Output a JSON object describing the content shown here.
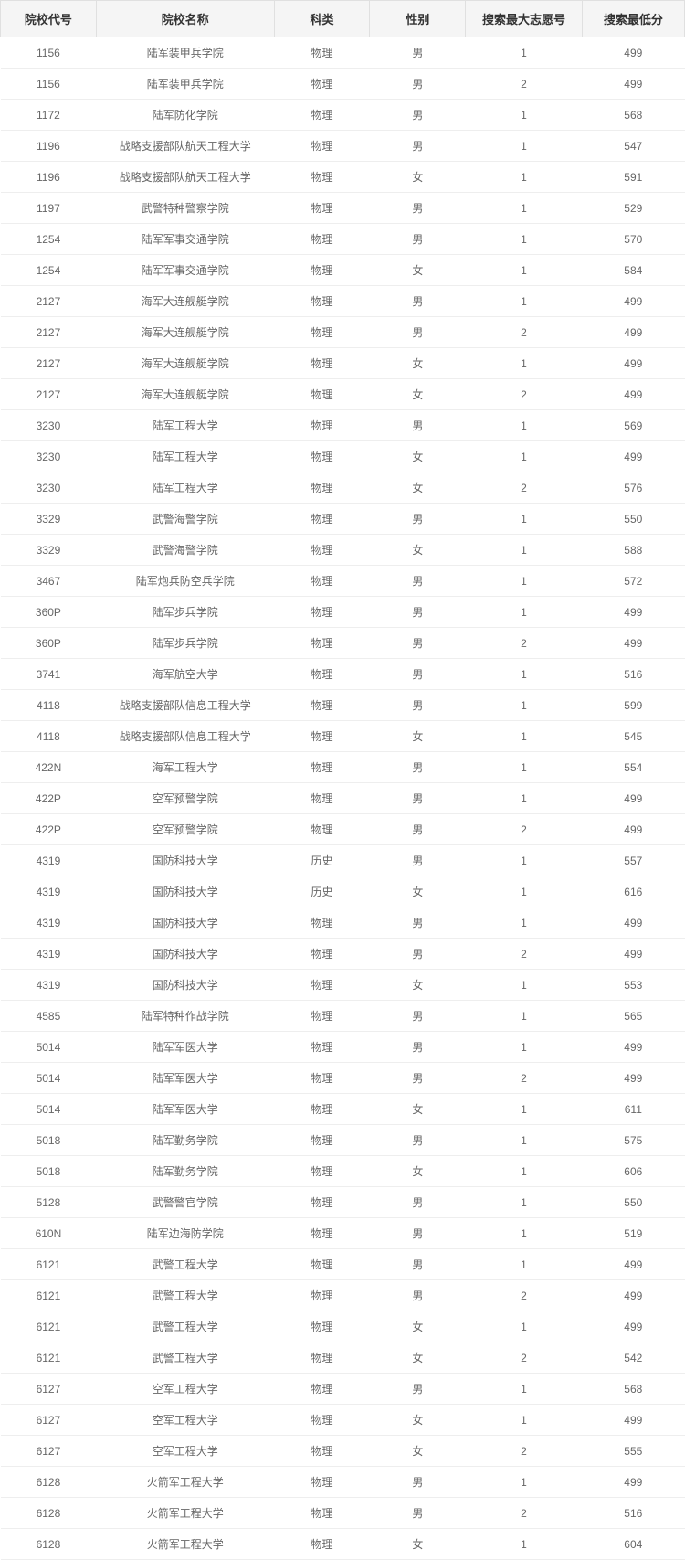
{
  "table": {
    "columns": [
      "院校代号",
      "院校名称",
      "科类",
      "性别",
      "搜索最大志愿号",
      "搜索最低分"
    ],
    "column_classes": [
      "col-code",
      "col-name",
      "col-subject",
      "col-gender",
      "col-volunteer",
      "col-score"
    ],
    "styling": {
      "header_bg": "#f5f5f5",
      "header_color": "#333333",
      "header_fontsize": 13,
      "header_fontweight": 700,
      "cell_color": "#666666",
      "cell_fontsize": 12,
      "border_color": "#e0e0e0",
      "row_border_color": "#eeeeee",
      "background_color": "#ffffff"
    },
    "rows": [
      [
        "1156",
        "陆军装甲兵学院",
        "物理",
        "男",
        "1",
        "499"
      ],
      [
        "1156",
        "陆军装甲兵学院",
        "物理",
        "男",
        "2",
        "499"
      ],
      [
        "1172",
        "陆军防化学院",
        "物理",
        "男",
        "1",
        "568"
      ],
      [
        "1196",
        "战略支援部队航天工程大学",
        "物理",
        "男",
        "1",
        "547"
      ],
      [
        "1196",
        "战略支援部队航天工程大学",
        "物理",
        "女",
        "1",
        "591"
      ],
      [
        "1197",
        "武警特种警察学院",
        "物理",
        "男",
        "1",
        "529"
      ],
      [
        "1254",
        "陆军军事交通学院",
        "物理",
        "男",
        "1",
        "570"
      ],
      [
        "1254",
        "陆军军事交通学院",
        "物理",
        "女",
        "1",
        "584"
      ],
      [
        "2127",
        "海军大连舰艇学院",
        "物理",
        "男",
        "1",
        "499"
      ],
      [
        "2127",
        "海军大连舰艇学院",
        "物理",
        "男",
        "2",
        "499"
      ],
      [
        "2127",
        "海军大连舰艇学院",
        "物理",
        "女",
        "1",
        "499"
      ],
      [
        "2127",
        "海军大连舰艇学院",
        "物理",
        "女",
        "2",
        "499"
      ],
      [
        "3230",
        "陆军工程大学",
        "物理",
        "男",
        "1",
        "569"
      ],
      [
        "3230",
        "陆军工程大学",
        "物理",
        "女",
        "1",
        "499"
      ],
      [
        "3230",
        "陆军工程大学",
        "物理",
        "女",
        "2",
        "576"
      ],
      [
        "3329",
        "武警海警学院",
        "物理",
        "男",
        "1",
        "550"
      ],
      [
        "3329",
        "武警海警学院",
        "物理",
        "女",
        "1",
        "588"
      ],
      [
        "3467",
        "陆军炮兵防空兵学院",
        "物理",
        "男",
        "1",
        "572"
      ],
      [
        "360P",
        "陆军步兵学院",
        "物理",
        "男",
        "1",
        "499"
      ],
      [
        "360P",
        "陆军步兵学院",
        "物理",
        "男",
        "2",
        "499"
      ],
      [
        "3741",
        "海军航空大学",
        "物理",
        "男",
        "1",
        "516"
      ],
      [
        "4118",
        "战略支援部队信息工程大学",
        "物理",
        "男",
        "1",
        "599"
      ],
      [
        "4118",
        "战略支援部队信息工程大学",
        "物理",
        "女",
        "1",
        "545"
      ],
      [
        "422N",
        "海军工程大学",
        "物理",
        "男",
        "1",
        "554"
      ],
      [
        "422P",
        "空军预警学院",
        "物理",
        "男",
        "1",
        "499"
      ],
      [
        "422P",
        "空军预警学院",
        "物理",
        "男",
        "2",
        "499"
      ],
      [
        "4319",
        "国防科技大学",
        "历史",
        "男",
        "1",
        "557"
      ],
      [
        "4319",
        "国防科技大学",
        "历史",
        "女",
        "1",
        "616"
      ],
      [
        "4319",
        "国防科技大学",
        "物理",
        "男",
        "1",
        "499"
      ],
      [
        "4319",
        "国防科技大学",
        "物理",
        "男",
        "2",
        "499"
      ],
      [
        "4319",
        "国防科技大学",
        "物理",
        "女",
        "1",
        "553"
      ],
      [
        "4585",
        "陆军特种作战学院",
        "物理",
        "男",
        "1",
        "565"
      ],
      [
        "5014",
        "陆军军医大学",
        "物理",
        "男",
        "1",
        "499"
      ],
      [
        "5014",
        "陆军军医大学",
        "物理",
        "男",
        "2",
        "499"
      ],
      [
        "5014",
        "陆军军医大学",
        "物理",
        "女",
        "1",
        "611"
      ],
      [
        "5018",
        "陆军勤务学院",
        "物理",
        "男",
        "1",
        "575"
      ],
      [
        "5018",
        "陆军勤务学院",
        "物理",
        "女",
        "1",
        "606"
      ],
      [
        "5128",
        "武警警官学院",
        "物理",
        "男",
        "1",
        "550"
      ],
      [
        "610N",
        "陆军边海防学院",
        "物理",
        "男",
        "1",
        "519"
      ],
      [
        "6121",
        "武警工程大学",
        "物理",
        "男",
        "1",
        "499"
      ],
      [
        "6121",
        "武警工程大学",
        "物理",
        "男",
        "2",
        "499"
      ],
      [
        "6121",
        "武警工程大学",
        "物理",
        "女",
        "1",
        "499"
      ],
      [
        "6121",
        "武警工程大学",
        "物理",
        "女",
        "2",
        "542"
      ],
      [
        "6127",
        "空军工程大学",
        "物理",
        "男",
        "1",
        "568"
      ],
      [
        "6127",
        "空军工程大学",
        "物理",
        "女",
        "1",
        "499"
      ],
      [
        "6127",
        "空军工程大学",
        "物理",
        "女",
        "2",
        "555"
      ],
      [
        "6128",
        "火箭军工程大学",
        "物理",
        "男",
        "1",
        "499"
      ],
      [
        "6128",
        "火箭军工程大学",
        "物理",
        "男",
        "2",
        "516"
      ],
      [
        "6128",
        "火箭军工程大学",
        "物理",
        "女",
        "1",
        "604"
      ]
    ]
  }
}
